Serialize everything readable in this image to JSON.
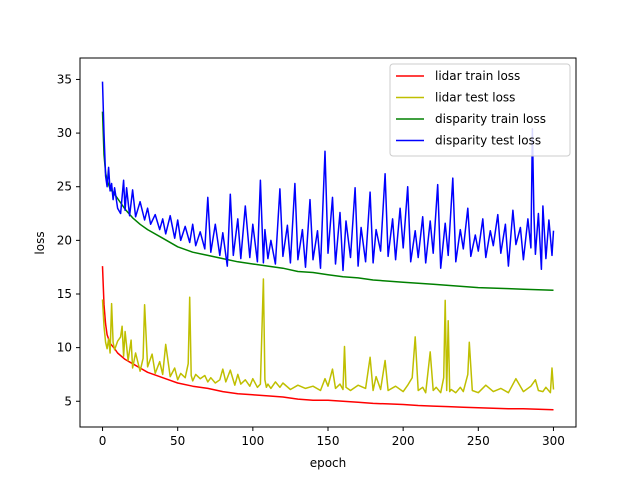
{
  "chart_data": {
    "type": "line",
    "title": "",
    "xlabel": "epoch",
    "ylabel": "loss",
    "xlim": [
      -15,
      315
    ],
    "ylim": [
      2.6,
      37.0
    ],
    "x_ticks": [
      0,
      50,
      100,
      150,
      200,
      250,
      300
    ],
    "y_ticks": [
      5,
      10,
      15,
      20,
      25,
      30,
      35
    ],
    "grid": false,
    "legend_position": "top-right",
    "series": [
      {
        "name": "lidar train loss",
        "color": "#ff0000",
        "x": [
          0,
          1,
          2,
          3,
          5,
          8,
          10,
          15,
          20,
          25,
          30,
          40,
          50,
          60,
          70,
          80,
          90,
          100,
          110,
          120,
          130,
          140,
          150,
          160,
          170,
          180,
          190,
          200,
          210,
          220,
          230,
          240,
          250,
          260,
          270,
          280,
          290,
          300
        ],
        "y": [
          17.6,
          14.0,
          12.2,
          11.2,
          10.4,
          9.9,
          9.5,
          8.9,
          8.5,
          8.1,
          7.7,
          7.2,
          6.7,
          6.4,
          6.2,
          5.9,
          5.7,
          5.6,
          5.5,
          5.4,
          5.2,
          5.1,
          5.1,
          5.0,
          4.9,
          4.8,
          4.75,
          4.7,
          4.6,
          4.55,
          4.5,
          4.45,
          4.4,
          4.35,
          4.3,
          4.3,
          4.25,
          4.2
        ]
      },
      {
        "name": "lidar test loss",
        "color": "#bfbf00",
        "x": [
          0,
          1,
          2,
          3,
          4,
          5,
          6,
          7,
          8,
          10,
          12,
          13,
          14,
          15,
          17,
          19,
          20,
          22,
          25,
          27,
          28,
          30,
          33,
          35,
          38,
          40,
          42,
          45,
          48,
          50,
          52,
          55,
          57,
          58,
          59,
          60,
          62,
          65,
          68,
          70,
          72,
          75,
          78,
          80,
          82,
          85,
          88,
          90,
          92,
          95,
          98,
          100,
          103,
          105,
          107,
          108,
          109,
          110,
          112,
          115,
          118,
          120,
          125,
          130,
          135,
          140,
          145,
          148,
          150,
          153,
          155,
          158,
          160,
          161,
          162,
          165,
          170,
          175,
          178,
          180,
          182,
          185,
          188,
          190,
          195,
          200,
          203,
          206,
          208,
          210,
          213,
          215,
          218,
          220,
          222,
          225,
          227,
          228,
          229,
          230,
          231,
          232,
          235,
          238,
          240,
          243,
          244,
          246,
          250,
          255,
          260,
          265,
          270,
          275,
          280,
          285,
          288,
          290,
          293,
          295,
          298,
          299,
          300
        ],
        "y": [
          14.5,
          12.0,
          10.5,
          9.9,
          10.8,
          9.5,
          14.1,
          10.5,
          9.8,
          10.6,
          11.0,
          12.0,
          9.2,
          11.5,
          8.8,
          10.7,
          8.1,
          9.5,
          7.8,
          9.0,
          14.0,
          8.2,
          9.4,
          7.6,
          8.7,
          7.5,
          10.3,
          7.3,
          8.1,
          7.0,
          7.6,
          7.2,
          8.5,
          14.7,
          7.4,
          6.9,
          7.5,
          7.1,
          7.4,
          6.8,
          7.2,
          6.7,
          7.0,
          8.0,
          6.8,
          7.9,
          6.5,
          7.5,
          6.6,
          7.0,
          6.4,
          7.1,
          6.3,
          6.6,
          16.4,
          7.0,
          6.3,
          6.6,
          6.2,
          6.8,
          6.3,
          6.7,
          6.1,
          6.5,
          6.2,
          6.4,
          6.0,
          7.1,
          6.4,
          8.0,
          6.2,
          6.6,
          6.1,
          10.1,
          6.3,
          6.0,
          6.5,
          6.2,
          9.1,
          6.0,
          7.3,
          6.1,
          8.8,
          6.0,
          6.4,
          5.9,
          6.5,
          7.2,
          11.0,
          6.0,
          6.3,
          5.8,
          9.6,
          6.0,
          6.3,
          5.8,
          7.2,
          14.4,
          6.0,
          12.5,
          5.9,
          6.1,
          5.8,
          6.3,
          5.9,
          7.5,
          10.5,
          6.0,
          5.8,
          6.5,
          5.9,
          6.2,
          5.8,
          7.1,
          5.9,
          6.4,
          7.0,
          6.0,
          5.9,
          6.3,
          5.8,
          8.1,
          6.1
        ]
      },
      {
        "name": "disparity train loss",
        "color": "#008000",
        "x": [
          0,
          1,
          2,
          3,
          5,
          8,
          10,
          15,
          20,
          25,
          30,
          40,
          50,
          60,
          70,
          80,
          90,
          100,
          110,
          120,
          130,
          140,
          150,
          160,
          170,
          180,
          190,
          200,
          210,
          220,
          230,
          240,
          250,
          260,
          270,
          280,
          290,
          300
        ],
        "y": [
          32.0,
          28.0,
          26.3,
          25.6,
          24.8,
          24.3,
          23.9,
          22.9,
          22.1,
          21.5,
          21.0,
          20.2,
          19.4,
          18.9,
          18.6,
          18.3,
          18.0,
          17.8,
          17.6,
          17.4,
          17.1,
          17.0,
          16.8,
          16.6,
          16.5,
          16.3,
          16.2,
          16.1,
          16.0,
          15.9,
          15.8,
          15.7,
          15.6,
          15.55,
          15.5,
          15.45,
          15.4,
          15.35
        ]
      },
      {
        "name": "disparity test loss",
        "color": "#0000ff",
        "x": [
          0,
          1,
          2,
          3,
          4,
          5,
          6,
          7,
          8,
          10,
          12,
          14,
          15,
          16,
          18,
          20,
          22,
          25,
          28,
          30,
          32,
          35,
          38,
          40,
          42,
          45,
          48,
          50,
          52,
          55,
          58,
          60,
          62,
          65,
          68,
          70,
          72,
          75,
          78,
          80,
          83,
          85,
          87,
          90,
          92,
          95,
          98,
          100,
          103,
          105,
          107,
          108,
          110,
          112,
          115,
          118,
          120,
          123,
          125,
          128,
          130,
          133,
          135,
          138,
          140,
          143,
          145,
          148,
          150,
          153,
          155,
          158,
          160,
          162,
          165,
          168,
          170,
          172,
          175,
          178,
          180,
          182,
          185,
          188,
          190,
          193,
          195,
          198,
          200,
          203,
          205,
          208,
          210,
          213,
          215,
          218,
          220,
          223,
          225,
          228,
          230,
          233,
          235,
          238,
          240,
          243,
          245,
          248,
          250,
          253,
          255,
          258,
          260,
          263,
          265,
          268,
          270,
          273,
          275,
          278,
          280,
          283,
          285,
          286,
          287,
          288,
          290,
          292,
          293,
          295,
          297,
          299,
          300
        ],
        "y": [
          34.8,
          30.0,
          26.0,
          25.0,
          26.8,
          24.6,
          25.3,
          23.8,
          24.9,
          23.0,
          22.5,
          25.6,
          22.8,
          24.9,
          22.3,
          24.7,
          22.2,
          23.6,
          21.9,
          23.0,
          21.5,
          22.4,
          21.0,
          22.0,
          20.6,
          22.3,
          20.2,
          21.9,
          20.0,
          21.3,
          19.8,
          21.5,
          19.5,
          20.8,
          19.2,
          24.0,
          18.9,
          21.5,
          18.6,
          20.7,
          17.6,
          24.3,
          18.6,
          22.0,
          18.3,
          23.2,
          18.4,
          21.5,
          18.0,
          25.6,
          17.9,
          21.0,
          18.3,
          20.0,
          17.8,
          24.8,
          18.5,
          21.4,
          17.9,
          25.3,
          18.2,
          21.0,
          17.5,
          23.8,
          18.2,
          20.9,
          17.4,
          28.3,
          18.8,
          24.0,
          17.8,
          22.6,
          17.2,
          21.8,
          18.4,
          24.9,
          17.6,
          21.2,
          18.0,
          24.5,
          17.9,
          21.0,
          19.0,
          26.2,
          18.5,
          22.0,
          18.2,
          23.0,
          19.3,
          25.0,
          18.0,
          20.9,
          18.4,
          22.2,
          17.9,
          21.8,
          18.8,
          25.2,
          17.4,
          21.6,
          18.6,
          25.8,
          18.0,
          21.0,
          19.2,
          23.0,
          18.5,
          20.5,
          19.0,
          22.0,
          18.4,
          20.9,
          19.5,
          22.4,
          18.8,
          21.5,
          17.6,
          22.8,
          19.6,
          21.2,
          18.2,
          22.0,
          19.3,
          30.4,
          22.5,
          18.7,
          22.5,
          17.3,
          23.2,
          18.3,
          21.9,
          18.6,
          20.9
        ]
      }
    ]
  }
}
